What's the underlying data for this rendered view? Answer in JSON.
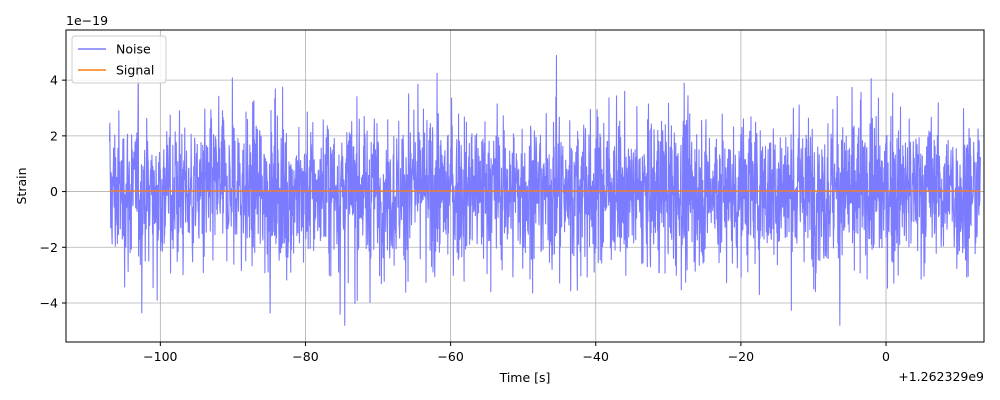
{
  "chart_data": {
    "type": "line",
    "title": "",
    "xlabel": "Time [s]",
    "ylabel": "Strain",
    "x_offset_label": "+1.262329e9",
    "y_scale_label": "1e−19",
    "xlim": [
      -113,
      13.5
    ],
    "ylim": [
      -5.4,
      5.8
    ],
    "x_ticks": [
      -100,
      -80,
      -60,
      -40,
      -20,
      0
    ],
    "x_tick_labels": [
      "−100",
      "−80",
      "−60",
      "−40",
      "−20",
      "0"
    ],
    "y_ticks": [
      -4,
      -2,
      0,
      2,
      4
    ],
    "y_tick_labels": [
      "−4",
      "−2",
      "0",
      "2",
      "4"
    ],
    "grid": true,
    "legend_position": "top-left",
    "series": [
      {
        "name": "Noise",
        "color": "#7b7bff",
        "x_range": [
          -107,
          13
        ],
        "mean": 0,
        "rms_envelope": 1.8,
        "peak_min": -4.8,
        "peak_max": 5.3
      },
      {
        "name": "Signal",
        "color": "#ff7f0e",
        "x_range": [
          -107,
          13
        ],
        "values_constant": 0.02
      }
    ]
  }
}
